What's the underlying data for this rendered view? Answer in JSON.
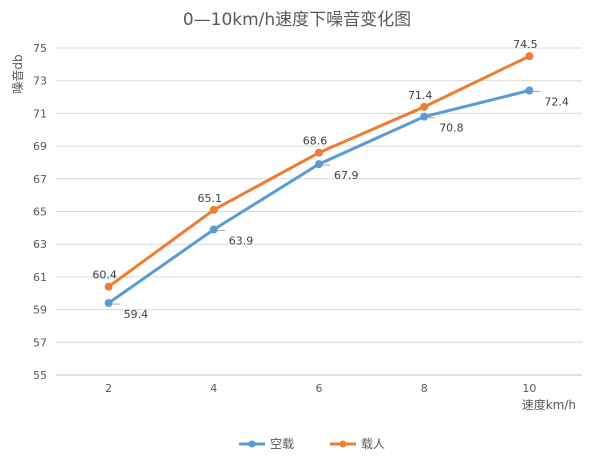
{
  "chart_data": {
    "type": "line",
    "title": "0—10km/h速度下噪音变化图",
    "xlabel": "速度km/h",
    "ylabel": "噪音db",
    "x": [
      2,
      4,
      6,
      8,
      10
    ],
    "ylim": [
      55,
      75
    ],
    "yticks": [
      55,
      57,
      59,
      61,
      63,
      65,
      67,
      69,
      71,
      73,
      75
    ],
    "grid": true,
    "legend": "bottom",
    "series": [
      {
        "name": "空载",
        "color": "#5B9BD5",
        "values": [
          59.4,
          63.9,
          67.9,
          70.8,
          72.4
        ]
      },
      {
        "name": "载人",
        "color": "#ED7D31",
        "values": [
          60.4,
          65.1,
          68.6,
          71.4,
          74.5
        ]
      }
    ]
  }
}
